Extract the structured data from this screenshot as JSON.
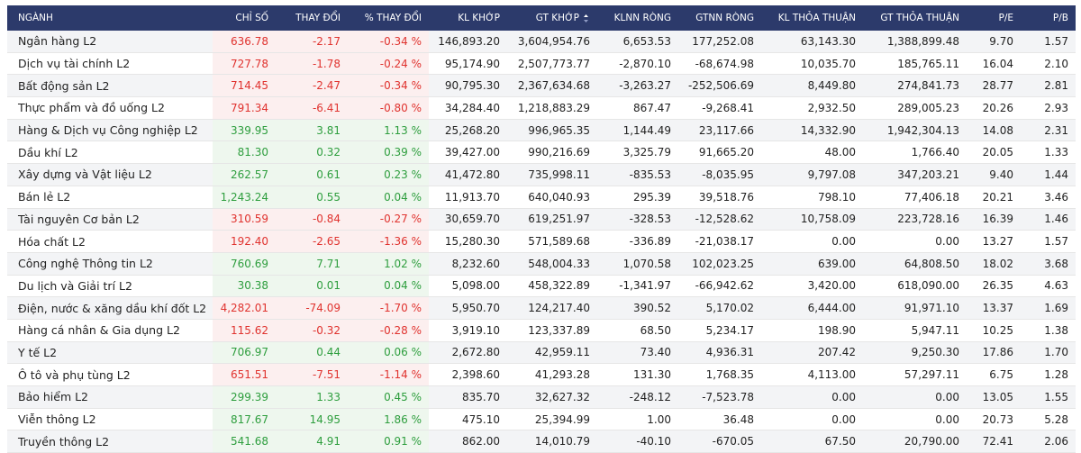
{
  "table": {
    "header": [
      "NGÀNH",
      "CHỈ SỐ",
      "THAY ĐỔI",
      "% THAY ĐỔI",
      "KL KHỚP",
      "GT KHỚP",
      "KLNN RÒNG",
      "GTNN RÒNG",
      "KL THỎA THUẬN",
      "GT THỎA THUẬN",
      "P/E",
      "P/B"
    ],
    "rows": [
      [
        "Ngân hàng L2",
        "636.78",
        "-2.17",
        "-0.34 %",
        "146,893.20",
        "3,604,954.76",
        "6,653.53",
        "177,252.08",
        "63,143.30",
        "1,388,899.48",
        "9.70",
        "1.57"
      ],
      [
        "Dịch vụ tài chính L2",
        "727.78",
        "-1.78",
        "-0.24 %",
        "95,174.90",
        "2,507,773.77",
        "-2,870.10",
        "-68,674.98",
        "10,035.70",
        "185,765.11",
        "16.04",
        "2.10"
      ],
      [
        "Bất động sản L2",
        "714.45",
        "-2.47",
        "-0.34 %",
        "90,795.30",
        "2,367,634.68",
        "-3,263.27",
        "-252,506.69",
        "8,449.80",
        "274,841.73",
        "28.77",
        "2.81"
      ],
      [
        "Thực phẩm và đồ uống L2",
        "791.34",
        "-6.41",
        "-0.80 %",
        "34,284.40",
        "1,218,883.29",
        "867.47",
        "-9,268.41",
        "2,932.50",
        "289,005.23",
        "20.26",
        "2.93"
      ],
      [
        "Hàng & Dịch vụ Công nghiệp L2",
        "339.95",
        "3.81",
        "1.13 %",
        "25,268.20",
        "996,965.35",
        "1,144.49",
        "23,117.66",
        "14,332.90",
        "1,942,304.13",
        "14.08",
        "2.31"
      ],
      [
        "Dầu khí L2",
        "81.30",
        "0.32",
        "0.39 %",
        "39,427.00",
        "990,216.69",
        "3,325.79",
        "91,665.20",
        "48.00",
        "1,766.40",
        "20.05",
        "1.33"
      ],
      [
        "Xây dựng và Vật liệu L2",
        "262.57",
        "0.61",
        "0.23 %",
        "41,472.80",
        "735,998.11",
        "-835.53",
        "-8,035.95",
        "9,797.08",
        "347,203.21",
        "9.40",
        "1.44"
      ],
      [
        "Bán lẻ L2",
        "1,243.24",
        "0.55",
        "0.04 %",
        "11,913.70",
        "640,040.93",
        "295.39",
        "39,518.76",
        "798.10",
        "77,406.18",
        "20.21",
        "3.46"
      ],
      [
        "Tài nguyên Cơ bản L2",
        "310.59",
        "-0.84",
        "-0.27 %",
        "30,659.70",
        "619,251.97",
        "-328.53",
        "-12,528.62",
        "10,758.09",
        "223,728.16",
        "16.39",
        "1.46"
      ],
      [
        "Hóa chất L2",
        "192.40",
        "-2.65",
        "-1.36 %",
        "15,280.30",
        "571,589.68",
        "-336.89",
        "-21,038.17",
        "0.00",
        "0.00",
        "13.27",
        "1.57"
      ],
      [
        "Công nghệ Thông tin L2",
        "760.69",
        "7.71",
        "1.02 %",
        "8,232.60",
        "548,004.33",
        "1,070.58",
        "102,023.25",
        "639.00",
        "64,808.50",
        "18.02",
        "3.68"
      ],
      [
        "Du lịch và Giải trí L2",
        "30.38",
        "0.01",
        "0.04 %",
        "5,098.00",
        "458,322.89",
        "-1,341.97",
        "-66,942.62",
        "3,420.00",
        "618,090.00",
        "26.35",
        "4.63"
      ],
      [
        "Điện, nước & xăng dầu khí đốt L2",
        "4,282.01",
        "-74.09",
        "-1.70 %",
        "5,950.70",
        "124,217.40",
        "390.52",
        "5,170.02",
        "6,444.00",
        "91,971.10",
        "13.37",
        "1.69"
      ],
      [
        "Hàng cá nhân & Gia dụng L2",
        "115.62",
        "-0.32",
        "-0.28 %",
        "3,919.10",
        "123,337.89",
        "68.50",
        "5,234.17",
        "198.90",
        "5,947.11",
        "10.25",
        "1.38"
      ],
      [
        "Y tế L2",
        "706.97",
        "0.44",
        "0.06 %",
        "2,672.80",
        "42,959.11",
        "73.40",
        "4,936.31",
        "207.42",
        "9,250.30",
        "17.86",
        "1.70"
      ],
      [
        "Ô tô và phụ tùng L2",
        "651.51",
        "-7.51",
        "-1.14 %",
        "2,398.60",
        "41,293.28",
        "131.30",
        "1,768.35",
        "4,113.00",
        "57,297.11",
        "6.75",
        "1.28"
      ],
      [
        "Bảo hiểm L2",
        "299.39",
        "1.33",
        "0.45 %",
        "835.70",
        "32,627.32",
        "-248.12",
        "-7,523.78",
        "0.00",
        "0.00",
        "13.05",
        "1.55"
      ],
      [
        "Viễn thông L2",
        "817.67",
        "14.95",
        "1.86 %",
        "475.10",
        "25,394.99",
        "1.00",
        "36.48",
        "0.00",
        "0.00",
        "20.73",
        "5.28"
      ],
      [
        "Truyền thông L2",
        "541.68",
        "4.91",
        "0.91 %",
        "862.00",
        "14,010.79",
        "-40.10",
        "-670.05",
        "67.50",
        "20,790.00",
        "72.41",
        "2.06"
      ]
    ]
  }
}
